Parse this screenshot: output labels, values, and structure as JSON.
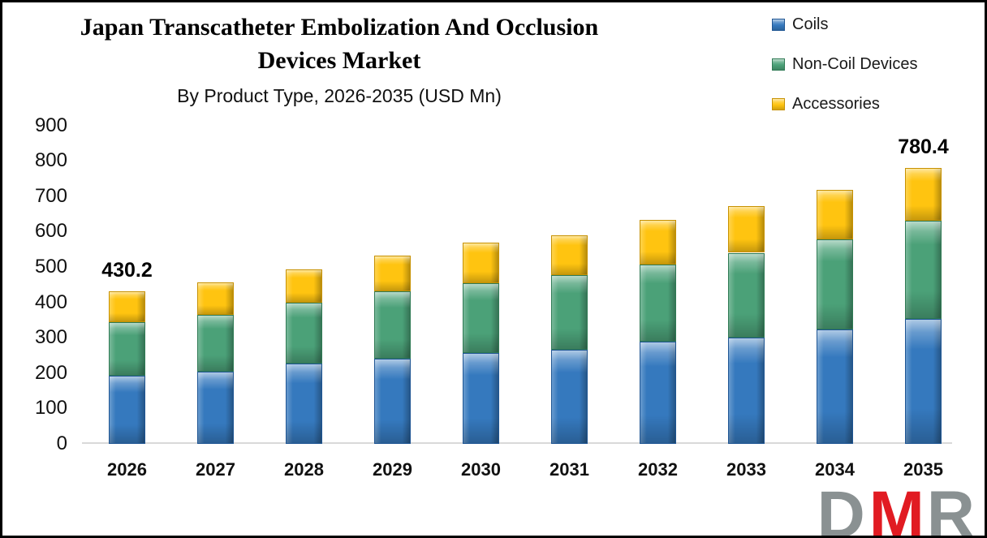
{
  "title": {
    "line1": "Japan Transcatheter Embolization And Occlusion",
    "line2": "Devices Market",
    "subtitle": "By Product Type, 2026-2035 (USD Mn)"
  },
  "chart_data": {
    "type": "bar",
    "stacked": true,
    "title": "Japan Transcatheter Embolization And Occlusion Devices Market",
    "subtitle": "By Product Type, 2026-2035 (USD Mn)",
    "categories": [
      "2026",
      "2027",
      "2028",
      "2029",
      "2030",
      "2031",
      "2032",
      "2033",
      "2034",
      "2035"
    ],
    "series": [
      {
        "name": "Coils",
        "color": "#3579BE",
        "border_color": "#1E5593",
        "values": [
          193,
          204,
          226,
          241,
          257,
          265,
          289,
          300,
          324,
          353
        ]
      },
      {
        "name": "Non-Coil Devices",
        "color": "#4BA178",
        "border_color": "#2F7A54",
        "values": [
          152,
          161,
          173,
          189,
          198,
          213,
          217,
          240,
          253,
          277
        ]
      },
      {
        "name": "Accessories",
        "color": "#FFC410",
        "border_color": "#C79100",
        "values": [
          85.2,
          91,
          95,
          102,
          113,
          112,
          126,
          132,
          140,
          150.4
        ]
      }
    ],
    "totals": [
      430.2,
      456,
      494,
      532,
      568,
      590,
      632,
      672,
      717,
      780.4
    ],
    "data_labels": [
      {
        "category_index": 0,
        "text": "430.2"
      },
      {
        "category_index": 9,
        "text": "780.4"
      }
    ],
    "xlabel": "",
    "ylabel": "",
    "ylim": [
      0,
      900
    ],
    "yticks": [
      0,
      100,
      200,
      300,
      400,
      500,
      600,
      700,
      800,
      900
    ],
    "grid": false,
    "legend_position": "top-right",
    "axis_line_color": "#D9D9D9"
  },
  "logo": {
    "letters": [
      {
        "char": "D",
        "color": "#8A9192"
      },
      {
        "char": "M",
        "color": "#E11B22"
      },
      {
        "char": "R",
        "color": "#8A9192"
      }
    ]
  }
}
